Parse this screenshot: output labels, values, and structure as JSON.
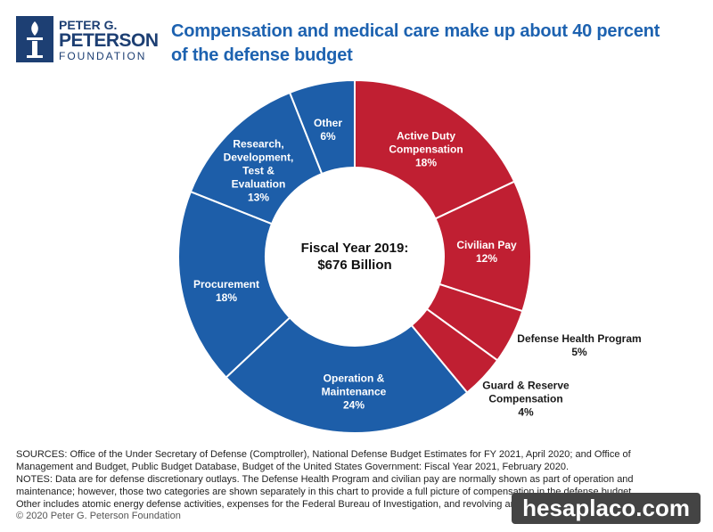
{
  "logo": {
    "line1": "PETER G.",
    "line2": "PETERSON",
    "line3": "FOUNDATION"
  },
  "chart_data": {
    "type": "donut",
    "title": "Compensation and medical care make up about 40 percent\nof the defense budget",
    "center_label": "Fiscal Year 2019:\n$676 Billion",
    "categories": [
      "Active Duty\nCompensation",
      "Civilian Pay",
      "Defense Health Program",
      "Guard & Reserve\nCompensation",
      "Operation &\nMaintenance",
      "Procurement",
      "Research,\nDevelopment,\nTest &\nEvaluation",
      "Other"
    ],
    "values": [
      18,
      12,
      5,
      4,
      24,
      18,
      13,
      6
    ],
    "value_labels": [
      "18%",
      "12%",
      "5%",
      "4%",
      "24%",
      "18%",
      "13%",
      "6%"
    ],
    "colors": [
      "#c01f32",
      "#c01f32",
      "#c01f32",
      "#c01f32",
      "#1d5ea9",
      "#1d5ea9",
      "#1d5ea9",
      "#1d5ea9"
    ]
  },
  "footnotes": {
    "sources": "SOURCES: Office of the Under Secretary of Defense (Comptroller), National Defense Budget Estimates for FY 2021, April 2020; and Office of Management and Budget, Public Budget Database, Budget of the United States Government: Fiscal Year 2021, February 2020.",
    "notes": "NOTES: Data are for defense discretionary outlays. The Defense Health Program and civilian pay are normally shown as part of operation and maintenance; however, those two categories are shown separately in this chart to provide a full picture of compensation in the defense budget. Other includes atomic energy defense activities, expenses for the Federal Bureau of Investigation, and revolving and management funds.",
    "copyright": "© 2020 Peter G. Peterson Foundation"
  },
  "watermark": "hesaplaco.com"
}
